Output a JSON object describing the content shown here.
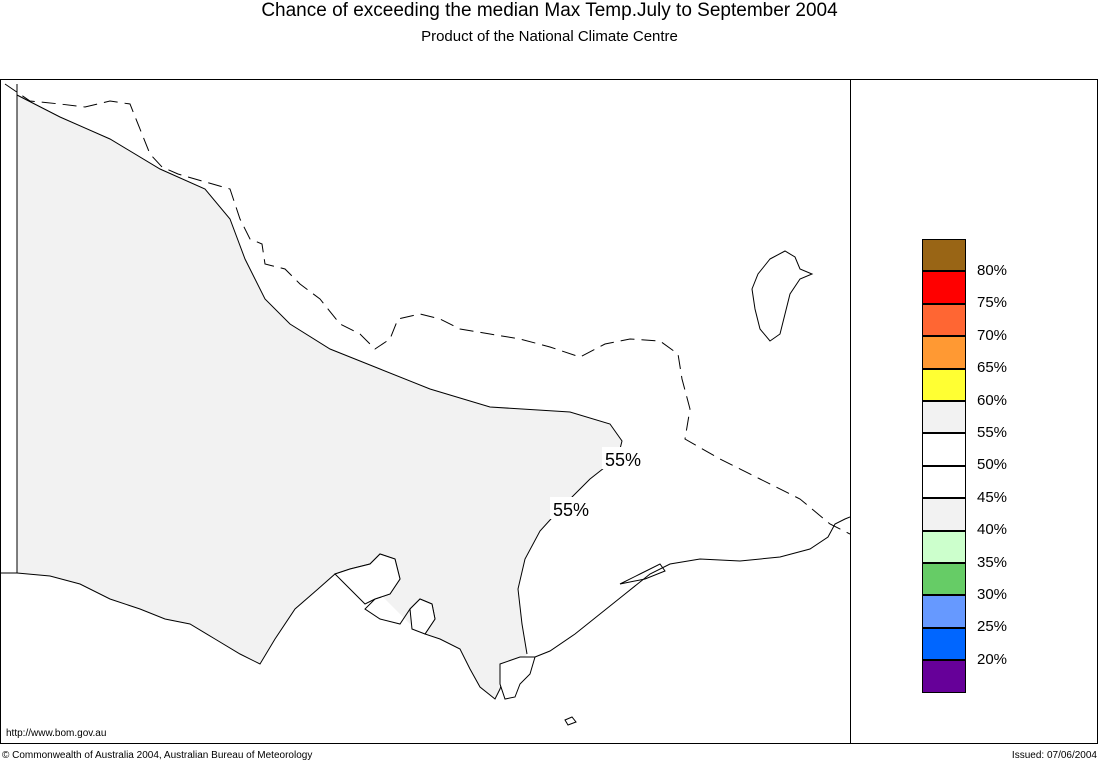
{
  "header": {
    "title": "Chance of exceeding the median Max Temp.July to September 2004",
    "subtitle": "Product of the National Climate Centre"
  },
  "map": {
    "contour_labels": [
      "55%",
      "55%"
    ],
    "shaded_color": "#f2f2f2"
  },
  "legend": {
    "items": [
      {
        "color": "#996515",
        "label": "80%"
      },
      {
        "color": "#ff0000",
        "label": "75%"
      },
      {
        "color": "#ff6633",
        "label": "70%"
      },
      {
        "color": "#ff9933",
        "label": "65%"
      },
      {
        "color": "#ffff33",
        "label": "60%"
      },
      {
        "color": "#f2f2f2",
        "label": "55%"
      },
      {
        "color": "#ffffff",
        "label": "50%"
      },
      {
        "color": "#ffffff",
        "label": "45%"
      },
      {
        "color": "#f2f2f2",
        "label": "40%"
      },
      {
        "color": "#ccffcc",
        "label": "35%"
      },
      {
        "color": "#66cc66",
        "label": "30%"
      },
      {
        "color": "#6699ff",
        "label": "25%"
      },
      {
        "color": "#0066ff",
        "label": "20%"
      },
      {
        "color": "#660099",
        "label": ""
      }
    ]
  },
  "footer": {
    "url": "http://www.bom.gov.au",
    "copyright": "© Commonwealth of Australia 2004, Australian Bureau of Meteorology",
    "issued": "Issued: 07/06/2004"
  }
}
